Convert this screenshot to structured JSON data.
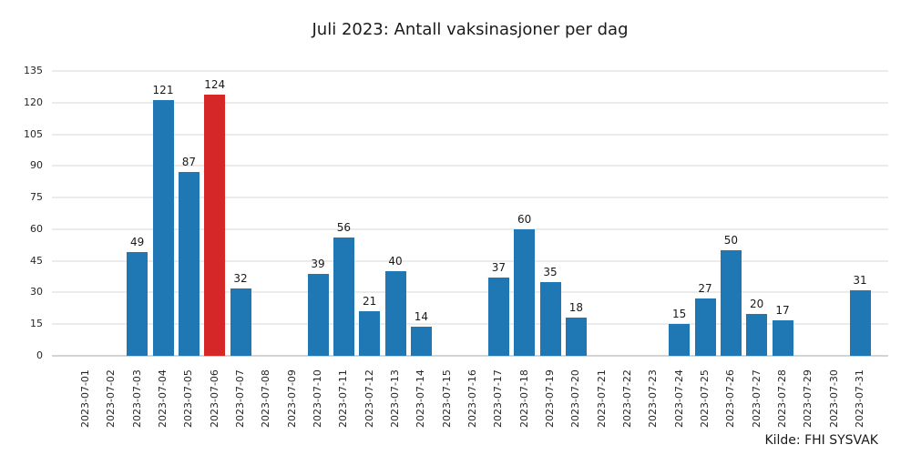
{
  "chart_data": {
    "type": "bar",
    "title": "Juli 2023: Antall vaksinasjoner per dag",
    "source": "Kilde: FHI SYSVAK",
    "categories": [
      "2023-07-01",
      "2023-07-02",
      "2023-07-03",
      "2023-07-04",
      "2023-07-05",
      "2023-07-06",
      "2023-07-07",
      "2023-07-08",
      "2023-07-09",
      "2023-07-10",
      "2023-07-11",
      "2023-07-12",
      "2023-07-13",
      "2023-07-14",
      "2023-07-15",
      "2023-07-16",
      "2023-07-17",
      "2023-07-18",
      "2023-07-19",
      "2023-07-20",
      "2023-07-21",
      "2023-07-22",
      "2023-07-23",
      "2023-07-24",
      "2023-07-25",
      "2023-07-26",
      "2023-07-27",
      "2023-07-28",
      "2023-07-29",
      "2023-07-30",
      "2023-07-31"
    ],
    "values": [
      0,
      0,
      49,
      121,
      87,
      124,
      32,
      0,
      0,
      39,
      56,
      21,
      40,
      14,
      0,
      0,
      37,
      60,
      35,
      18,
      0,
      0,
      0,
      15,
      27,
      50,
      20,
      17,
      0,
      0,
      31
    ],
    "highlight_index": 5,
    "highlight_category": "2023-07-06",
    "value_labels_shown": true,
    "xlabel": "",
    "ylabel": "",
    "ylim": [
      0,
      135
    ],
    "yticks": [
      0,
      15,
      30,
      45,
      60,
      75,
      90,
      105,
      120,
      135
    ],
    "grid": "horizontal",
    "legend": "none",
    "colors": {
      "bar": "#1f77b4",
      "highlight": "#d62728",
      "gridline": "#ebebeb",
      "baseline": "#d4d4d4",
      "tick_text": "#262626",
      "title_text": "#1a1a1a"
    }
  }
}
